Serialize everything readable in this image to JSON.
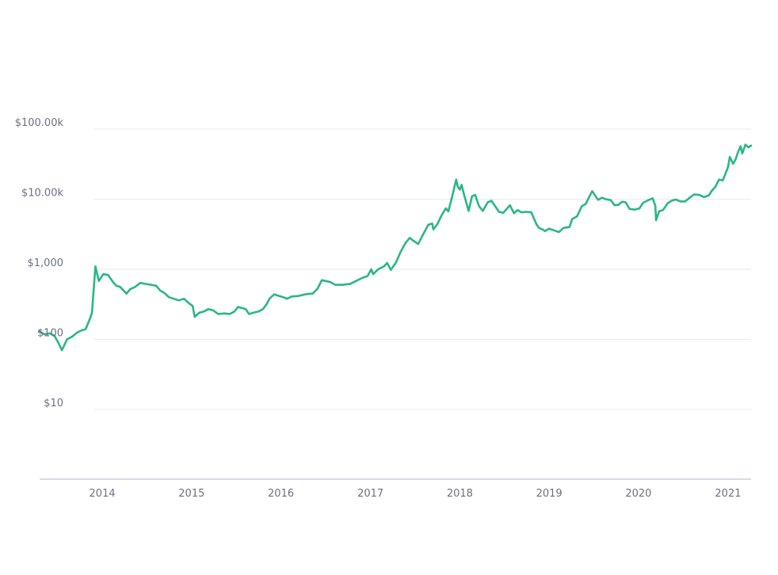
{
  "chart_data": {
    "type": "line",
    "title": "",
    "xlabel": "",
    "ylabel": "",
    "y_scale": "log",
    "ylim": [
      1,
      100000
    ],
    "xlim": [
      "2013-04-20",
      "2021-04-05"
    ],
    "grid": true,
    "legend": "none",
    "line_color": "#2bb686",
    "y_ticks": [
      {
        "value": 100000,
        "label": "$100.00k"
      },
      {
        "value": 10000,
        "label": "$10.00k"
      },
      {
        "value": 1000,
        "label": "$1,000"
      },
      {
        "value": 100,
        "label": "$100"
      },
      {
        "value": 10,
        "label": "$10"
      }
    ],
    "x_ticks": [
      {
        "value": "2014-01-01",
        "label": "2014"
      },
      {
        "value": "2015-01-01",
        "label": "2015"
      },
      {
        "value": "2016-01-01",
        "label": "2016"
      },
      {
        "value": "2017-01-01",
        "label": "2017"
      },
      {
        "value": "2018-01-01",
        "label": "2018"
      },
      {
        "value": "2019-01-01",
        "label": "2019"
      },
      {
        "value": "2020-01-01",
        "label": "2020"
      },
      {
        "value": "2021-01-01",
        "label": "2021"
      }
    ],
    "series": [
      {
        "x": [
          "2013-04-20",
          "2013-05-10",
          "2013-06-01",
          "2013-06-20",
          "2013-07-05",
          "2013-07-20",
          "2013-08-10",
          "2013-09-01",
          "2013-09-20",
          "2013-10-10",
          "2013-10-25",
          "2013-11-10",
          "2013-11-20",
          "2013-12-04",
          "2013-12-18",
          "2014-01-05",
          "2014-01-25",
          "2014-02-15",
          "2014-02-28",
          "2014-03-15",
          "2014-04-10",
          "2014-04-25",
          "2014-05-15",
          "2014-06-05",
          "2014-06-25",
          "2014-07-20",
          "2014-08-10",
          "2014-08-25",
          "2014-09-15",
          "2014-09-30",
          "2014-10-20",
          "2014-11-10",
          "2014-12-01",
          "2014-12-20",
          "2015-01-05",
          "2015-01-14",
          "2015-02-01",
          "2015-02-20",
          "2015-03-10",
          "2015-03-30",
          "2015-04-20",
          "2015-05-15",
          "2015-06-05",
          "2015-06-25",
          "2015-07-10",
          "2015-07-25",
          "2015-08-10",
          "2015-08-24",
          "2015-09-10",
          "2015-10-01",
          "2015-10-20",
          "2015-11-04",
          "2015-11-15",
          "2015-12-05",
          "2015-12-20",
          "2016-01-10",
          "2016-01-25",
          "2016-02-15",
          "2016-03-10",
          "2016-04-10",
          "2016-05-10",
          "2016-05-30",
          "2016-06-16",
          "2016-07-01",
          "2016-07-20",
          "2016-08-10",
          "2016-09-10",
          "2016-10-10",
          "2016-11-10",
          "2016-12-01",
          "2016-12-20",
          "2017-01-04",
          "2017-01-12",
          "2017-02-01",
          "2017-02-25",
          "2017-03-10",
          "2017-03-25",
          "2017-04-15",
          "2017-05-05",
          "2017-05-25",
          "2017-06-10",
          "2017-06-25",
          "2017-07-15",
          "2017-08-05",
          "2017-08-25",
          "2017-09-10",
          "2017-09-15",
          "2017-10-01",
          "2017-10-20",
          "2017-11-05",
          "2017-11-15",
          "2017-11-28",
          "2017-12-08",
          "2017-12-17",
          "2017-12-24",
          "2018-01-01",
          "2018-01-08",
          "2018-01-20",
          "2018-02-06",
          "2018-02-20",
          "2018-03-05",
          "2018-03-20",
          "2018-04-05",
          "2018-04-25",
          "2018-05-10",
          "2018-05-25",
          "2018-06-10",
          "2018-06-28",
          "2018-07-15",
          "2018-07-25",
          "2018-08-10",
          "2018-08-25",
          "2018-09-10",
          "2018-09-30",
          "2018-10-20",
          "2018-11-10",
          "2018-11-20",
          "2018-12-05",
          "2018-12-15",
          "2019-01-01",
          "2019-01-20",
          "2019-02-10",
          "2019-03-01",
          "2019-03-25",
          "2019-04-05",
          "2019-04-25",
          "2019-05-15",
          "2019-05-30",
          "2019-06-15",
          "2019-06-26",
          "2019-07-10",
          "2019-07-20",
          "2019-08-05",
          "2019-08-20",
          "2019-09-10",
          "2019-09-25",
          "2019-10-10",
          "2019-10-26",
          "2019-11-10",
          "2019-11-25",
          "2019-12-15",
          "2020-01-05",
          "2020-01-20",
          "2020-02-13",
          "2020-02-28",
          "2020-03-10",
          "2020-03-13",
          "2020-03-25",
          "2020-04-10",
          "2020-04-30",
          "2020-05-15",
          "2020-06-01",
          "2020-06-20",
          "2020-07-10",
          "2020-07-28",
          "2020-08-15",
          "2020-09-05",
          "2020-09-25",
          "2020-10-15",
          "2020-10-25",
          "2020-11-10",
          "2020-11-25",
          "2020-12-10",
          "2020-12-20",
          "2021-01-01",
          "2021-01-08",
          "2021-01-22",
          "2021-02-01",
          "2021-02-10",
          "2021-02-21",
          "2021-02-28",
          "2021-03-13",
          "2021-03-25",
          "2021-04-05"
        ],
        "y": [
          130,
          118,
          122,
          112,
          90,
          70,
          100,
          110,
          125,
          135,
          140,
          190,
          240,
          1100,
          680,
          850,
          830,
          650,
          580,
          560,
          450,
          520,
          560,
          640,
          620,
          600,
          580,
          500,
          450,
          400,
          380,
          360,
          380,
          330,
          300,
          210,
          240,
          250,
          270,
          260,
          230,
          235,
          230,
          250,
          290,
          280,
          270,
          230,
          240,
          250,
          270,
          320,
          380,
          440,
          420,
          400,
          380,
          410,
          415,
          440,
          450,
          530,
          700,
          680,
          660,
          600,
          600,
          620,
          700,
          760,
          800,
          1000,
          850,
          1000,
          1100,
          1230,
          980,
          1250,
          1800,
          2400,
          2800,
          2550,
          2300,
          3200,
          4300,
          4500,
          3700,
          4400,
          6000,
          7400,
          6700,
          10000,
          14000,
          19000,
          15000,
          13700,
          16000,
          11000,
          6800,
          11000,
          11500,
          8000,
          6800,
          9000,
          9500,
          8000,
          6600,
          6400,
          7500,
          8200,
          6300,
          7000,
          6500,
          6600,
          6500,
          4400,
          3900,
          3700,
          3500,
          3800,
          3600,
          3400,
          3900,
          4000,
          5200,
          5700,
          8000,
          8500,
          11000,
          13000,
          11000,
          9800,
          10500,
          10000,
          9700,
          8200,
          8300,
          9200,
          9000,
          7300,
          7100,
          7400,
          8900,
          9800,
          10300,
          8000,
          5000,
          6700,
          7000,
          8800,
          9500,
          9900,
          9300,
          9300,
          10500,
          11700,
          11500,
          10700,
          11400,
          13000,
          15000,
          19000,
          18500,
          22500,
          29000,
          40000,
          32000,
          37000,
          46000,
          57000,
          45000,
          60000,
          55000,
          58000
        ]
      }
    ]
  }
}
